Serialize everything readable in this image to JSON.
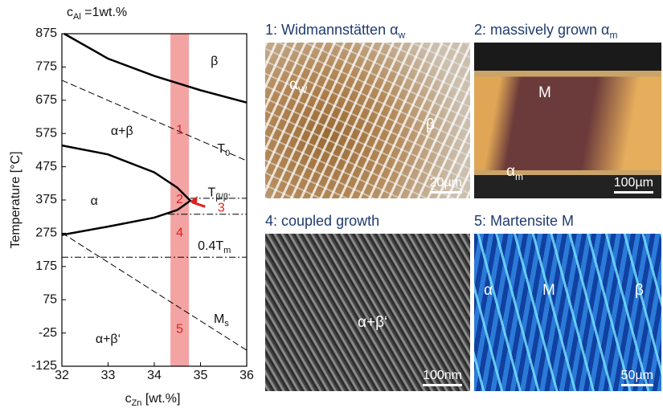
{
  "chart_data": {
    "type": "line",
    "top_label": {
      "text": "c",
      "sub": "Al",
      "suffix": " =1wt.%"
    },
    "ylabel": "Temperature [°C]",
    "xlabel": {
      "text": "c",
      "sub": "Zn",
      "suffix": " [wt.%]"
    },
    "xlim": [
      32,
      36
    ],
    "ylim": [
      -125,
      875
    ],
    "xticks": [
      32,
      33,
      34,
      35,
      36
    ],
    "yticks": [
      875,
      775,
      675,
      575,
      475,
      375,
      275,
      175,
      75,
      -25,
      -125
    ],
    "band": [
      34.35,
      34.75
    ],
    "band_color": "#f4a3a3",
    "series": [
      {
        "color": "#000",
        "style": "solid",
        "x": [
          32.05,
          33,
          34,
          35,
          36
        ],
        "values": [
          875,
          800,
          748,
          705,
          668
        ]
      },
      {
        "color": "#000",
        "style": "dashed",
        "x": [
          32,
          36
        ],
        "values": [
          735,
          493
        ]
      },
      {
        "color": "#000",
        "style": "solid",
        "x": [
          32,
          33,
          34,
          34.5,
          34.78,
          34.5,
          34,
          33,
          32
        ],
        "values": [
          539,
          512,
          458,
          412,
          373,
          345,
          322,
          295,
          270
        ]
      },
      {
        "color": "#000",
        "style": "dashdot",
        "x": [
          34.78,
          36
        ],
        "values": [
          380,
          380
        ]
      },
      {
        "color": "#000",
        "style": "dashdot",
        "x": [
          34.3,
          36
        ],
        "values": [
          332,
          332
        ]
      },
      {
        "color": "#000",
        "style": "dashdot",
        "x": [
          32,
          36
        ],
        "values": [
          203,
          203
        ]
      },
      {
        "color": "#000",
        "style": "dashed",
        "x": [
          32,
          36
        ],
        "values": [
          276,
          -77
        ]
      }
    ],
    "annotations": [
      {
        "text": "β"
      },
      {
        "text": "α+β"
      },
      {
        "text": "α"
      },
      {
        "text": "α+β‘"
      },
      {
        "text": "T",
        "sub": "0"
      },
      {
        "text": "T",
        "sub": "β/β‘"
      },
      {
        "text": "0.4T",
        "sub": "m"
      },
      {
        "text": "M",
        "sub": "s"
      }
    ],
    "markers": [
      "1",
      "2",
      "3",
      "4",
      "5"
    ],
    "marker_color": "#e02020"
  },
  "panels": [
    {
      "title": "1: Widmannstätten α",
      "title_sub": "w",
      "labels": [
        {
          "text": "α",
          "sub": "W"
        },
        {
          "text": "β"
        }
      ],
      "scale_bar": "20µm"
    },
    {
      "title": "2: massively grown α",
      "title_sub": "m",
      "labels": [
        {
          "text": "M"
        },
        {
          "text": "α",
          "sub": "m"
        }
      ],
      "scale_bar": "100µm"
    },
    {
      "title": "4: coupled growth",
      "labels": [
        {
          "text": "α+β‘"
        }
      ],
      "scale_bar": "100nm"
    },
    {
      "title": "5: Martensite M",
      "labels": [
        {
          "text": "α"
        },
        {
          "text": "M"
        },
        {
          "text": "β"
        }
      ],
      "scale_bar": "50µm"
    }
  ]
}
